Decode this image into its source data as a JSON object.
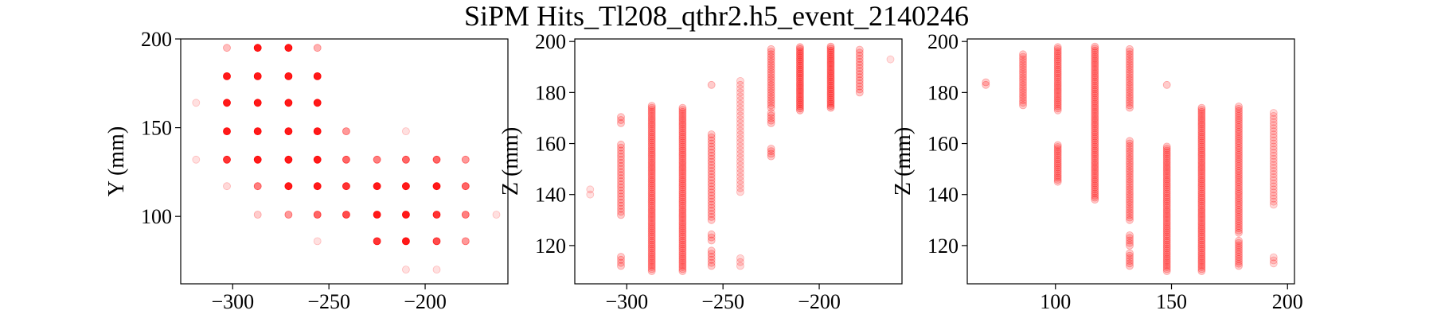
{
  "figure": {
    "title": "SiPM Hits_Tl208_qthr2.h5_event_2140246",
    "marker_color": "#ff0000"
  },
  "chart_data": [
    {
      "type": "scatter",
      "xlabel": "",
      "ylabel": "Y (mm)",
      "xlim": [
        -327,
        -157
      ],
      "ylim": [
        62,
        200
      ],
      "xticks": [
        -300,
        -250,
        -200
      ],
      "yticks": [
        100,
        150,
        200
      ],
      "xtick_labels": [
        "−300",
        "−250",
        "−200"
      ],
      "ytick_labels": [
        "100",
        "150",
        "200"
      ],
      "points": [
        {
          "x": -319,
          "y": 164,
          "a": 0.12
        },
        {
          "x": -319,
          "y": 132,
          "a": 0.12
        },
        {
          "x": -303,
          "y": 195,
          "a": 0.25
        },
        {
          "x": -303,
          "y": 179,
          "a": 0.9
        },
        {
          "x": -303,
          "y": 164,
          "a": 0.9
        },
        {
          "x": -303,
          "y": 148,
          "a": 0.9
        },
        {
          "x": -303,
          "y": 132,
          "a": 0.8
        },
        {
          "x": -303,
          "y": 117,
          "a": 0.15
        },
        {
          "x": -287,
          "y": 195,
          "a": 0.9
        },
        {
          "x": -287,
          "y": 179,
          "a": 0.9
        },
        {
          "x": -287,
          "y": 164,
          "a": 0.9
        },
        {
          "x": -287,
          "y": 148,
          "a": 0.9
        },
        {
          "x": -287,
          "y": 132,
          "a": 0.9
        },
        {
          "x": -287,
          "y": 117,
          "a": 0.5
        },
        {
          "x": -287,
          "y": 101,
          "a": 0.2
        },
        {
          "x": -271,
          "y": 195,
          "a": 0.9
        },
        {
          "x": -271,
          "y": 179,
          "a": 0.9
        },
        {
          "x": -271,
          "y": 164,
          "a": 0.9
        },
        {
          "x": -271,
          "y": 148,
          "a": 0.9
        },
        {
          "x": -271,
          "y": 132,
          "a": 0.9
        },
        {
          "x": -271,
          "y": 117,
          "a": 0.9
        },
        {
          "x": -271,
          "y": 101,
          "a": 0.4
        },
        {
          "x": -256,
          "y": 195,
          "a": 0.3
        },
        {
          "x": -256,
          "y": 179,
          "a": 0.9
        },
        {
          "x": -256,
          "y": 164,
          "a": 0.9
        },
        {
          "x": -256,
          "y": 148,
          "a": 0.9
        },
        {
          "x": -256,
          "y": 132,
          "a": 0.9
        },
        {
          "x": -256,
          "y": 117,
          "a": 0.9
        },
        {
          "x": -256,
          "y": 101,
          "a": 0.6
        },
        {
          "x": -256,
          "y": 86,
          "a": 0.12
        },
        {
          "x": -241,
          "y": 148,
          "a": 0.4
        },
        {
          "x": -241,
          "y": 132,
          "a": 0.6
        },
        {
          "x": -241,
          "y": 117,
          "a": 0.8
        },
        {
          "x": -241,
          "y": 101,
          "a": 0.7
        },
        {
          "x": -225,
          "y": 132,
          "a": 0.5
        },
        {
          "x": -225,
          "y": 117,
          "a": 0.9
        },
        {
          "x": -225,
          "y": 101,
          "a": 0.9
        },
        {
          "x": -225,
          "y": 86,
          "a": 0.8
        },
        {
          "x": -210,
          "y": 148,
          "a": 0.12
        },
        {
          "x": -210,
          "y": 132,
          "a": 0.6
        },
        {
          "x": -210,
          "y": 117,
          "a": 0.9
        },
        {
          "x": -210,
          "y": 101,
          "a": 0.9
        },
        {
          "x": -210,
          "y": 86,
          "a": 0.9
        },
        {
          "x": -210,
          "y": 70,
          "a": 0.12
        },
        {
          "x": -194,
          "y": 132,
          "a": 0.6
        },
        {
          "x": -194,
          "y": 117,
          "a": 0.9
        },
        {
          "x": -194,
          "y": 101,
          "a": 0.8
        },
        {
          "x": -194,
          "y": 86,
          "a": 0.7
        },
        {
          "x": -194,
          "y": 70,
          "a": 0.12
        },
        {
          "x": -179,
          "y": 132,
          "a": 0.4
        },
        {
          "x": -179,
          "y": 117,
          "a": 0.6
        },
        {
          "x": -179,
          "y": 101,
          "a": 0.5
        },
        {
          "x": -179,
          "y": 86,
          "a": 0.4
        },
        {
          "x": -163,
          "y": 101,
          "a": 0.12
        }
      ]
    },
    {
      "type": "scatter",
      "xlabel": "",
      "ylabel": "Z (mm)",
      "xlim": [
        -327,
        -157
      ],
      "ylim": [
        105,
        201
      ],
      "xticks": [
        -300,
        -250,
        -200
      ],
      "yticks": [
        120,
        140,
        160,
        180,
        200
      ],
      "xtick_labels": [
        "−300",
        "−250",
        "−200"
      ],
      "ytick_labels": [
        "120",
        "140",
        "160",
        "180",
        "200"
      ],
      "columns": [
        {
          "x": -319,
          "segments": [
            [
              140,
              142
            ]
          ],
          "step": 2,
          "a": 0.12
        },
        {
          "x": -303,
          "segments": [
            [
              112,
              116
            ],
            [
              132,
              160
            ],
            [
              168,
              171
            ]
          ],
          "step": 1.2,
          "a": 0.2
        },
        {
          "x": -287,
          "segments": [
            [
              110,
              175
            ]
          ],
          "step": 0.8,
          "a": 0.2
        },
        {
          "x": -271,
          "segments": [
            [
              110,
              174
            ]
          ],
          "step": 0.8,
          "a": 0.2
        },
        {
          "x": -256,
          "segments": [
            [
              112,
              118
            ],
            [
              122,
              125
            ],
            [
              130,
              164
            ],
            [
              183,
              183
            ]
          ],
          "step": 1.2,
          "a": 0.2
        },
        {
          "x": -241,
          "segments": [
            [
              112,
              116
            ],
            [
              141,
              185
            ]
          ],
          "step": 1.5,
          "a": 0.15
        },
        {
          "x": -225,
          "segments": [
            [
              155,
              158
            ],
            [
              168,
              172
            ],
            [
              174,
              197
            ]
          ],
          "step": 1,
          "a": 0.2
        },
        {
          "x": -210,
          "segments": [
            [
              173,
              198
            ]
          ],
          "step": 0.8,
          "a": 0.25
        },
        {
          "x": -194,
          "segments": [
            [
              174,
              198
            ]
          ],
          "step": 0.8,
          "a": 0.25
        },
        {
          "x": -179,
          "segments": [
            [
              180,
              197
            ]
          ],
          "step": 1.2,
          "a": 0.2
        },
        {
          "x": -163,
          "segments": [
            [
              193,
              193
            ]
          ],
          "step": 1,
          "a": 0.12
        }
      ]
    },
    {
      "type": "scatter",
      "xlabel": "",
      "ylabel": "Z (mm)",
      "xlim": [
        62,
        203
      ],
      "ylim": [
        105,
        201
      ],
      "xticks": [
        100,
        150,
        200
      ],
      "yticks": [
        120,
        140,
        160,
        180,
        200
      ],
      "xtick_labels": [
        "100",
        "150",
        "200"
      ],
      "ytick_labels": [
        "120",
        "140",
        "160",
        "180",
        "200"
      ],
      "columns": [
        {
          "x": 70,
          "segments": [
            [
              183,
              184
            ]
          ],
          "step": 1,
          "a": 0.2
        },
        {
          "x": 86,
          "segments": [
            [
              175,
              195
            ]
          ],
          "step": 1,
          "a": 0.2
        },
        {
          "x": 101,
          "segments": [
            [
              145,
              160
            ],
            [
              173,
              198
            ]
          ],
          "step": 0.8,
          "a": 0.2
        },
        {
          "x": 117,
          "segments": [
            [
              138,
              198
            ]
          ],
          "step": 0.8,
          "a": 0.2
        },
        {
          "x": 132,
          "segments": [
            [
              112,
              117
            ],
            [
              120,
              124
            ],
            [
              130,
              161
            ],
            [
              174,
              197
            ]
          ],
          "step": 1,
          "a": 0.2
        },
        {
          "x": 148,
          "segments": [
            [
              110,
              159
            ],
            [
              183,
              183
            ]
          ],
          "step": 0.8,
          "a": 0.2
        },
        {
          "x": 163,
          "segments": [
            [
              110,
              174
            ]
          ],
          "step": 0.8,
          "a": 0.2
        },
        {
          "x": 179,
          "segments": [
            [
              112,
              122
            ],
            [
              125,
              175
            ]
          ],
          "step": 0.9,
          "a": 0.2
        },
        {
          "x": 194,
          "segments": [
            [
              113,
              116
            ],
            [
              136,
              173
            ]
          ],
          "step": 1.2,
          "a": 0.15
        }
      ]
    }
  ]
}
